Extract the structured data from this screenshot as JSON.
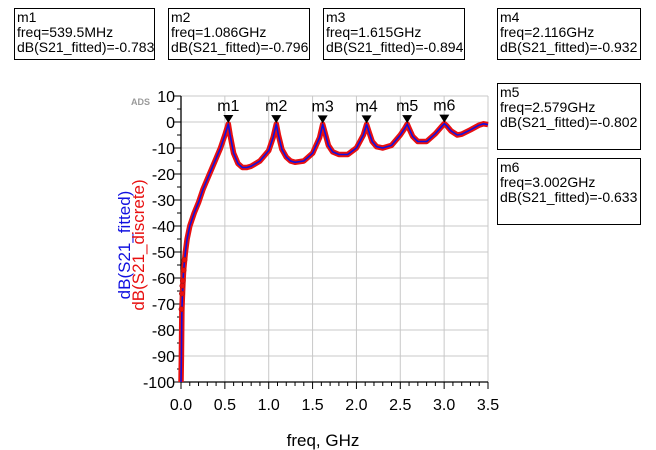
{
  "markers": [
    {
      "name": "m1",
      "freq": "freq=539.5MHz",
      "db": "dB(S21_fitted)=-0.783",
      "x": 0.5395,
      "y": -0.783
    },
    {
      "name": "m2",
      "freq": "freq=1.086GHz",
      "db": "dB(S21_fitted)=-0.796",
      "x": 1.086,
      "y": -0.796
    },
    {
      "name": "m3",
      "freq": "freq=1.615GHz",
      "db": "dB(S21_fitted)=-0.894",
      "x": 1.615,
      "y": -0.894
    },
    {
      "name": "m4",
      "freq": "freq=2.116GHz",
      "db": "dB(S21_fitted)=-0.932",
      "x": 2.116,
      "y": -0.932
    },
    {
      "name": "m5",
      "freq": "freq=2.579GHz",
      "db": "dB(S21_fitted)=-0.802",
      "x": 2.579,
      "y": -0.802
    },
    {
      "name": "m6",
      "freq": "freq=3.002GHz",
      "db": "dB(S21_fitted)=-0.633",
      "x": 3.002,
      "y": -0.633
    }
  ],
  "watermark": "ADS",
  "colors": {
    "fitted": "#1010e0",
    "discrete": "#e81010",
    "grid": "#c8c8c8"
  },
  "chart_data": {
    "type": "line",
    "xlabel": "freq, GHz",
    "ylabels": [
      "dB(S21_fitted)",
      "dB(S21_discrete)"
    ],
    "xlim": [
      0,
      3.5
    ],
    "ylim": [
      -100,
      10
    ],
    "xticks": [
      "0.0",
      "0.5",
      "1.0",
      "1.5",
      "2.0",
      "2.5",
      "3.0",
      "3.5"
    ],
    "yticks": [
      "10",
      "0",
      "-10",
      "-20",
      "-30",
      "-40",
      "-50",
      "-60",
      "-70",
      "-80",
      "-90",
      "-100"
    ],
    "grid": true,
    "series": [
      {
        "name": "dB(S21_fitted)",
        "style": "line",
        "x": [
          0.0,
          0.005,
          0.01,
          0.02,
          0.03,
          0.05,
          0.07,
          0.1,
          0.15,
          0.2,
          0.25,
          0.3,
          0.35,
          0.4,
          0.45,
          0.5,
          0.5395,
          0.56,
          0.6,
          0.65,
          0.7,
          0.75,
          0.8,
          0.9,
          1.0,
          1.05,
          1.086,
          1.11,
          1.15,
          1.2,
          1.25,
          1.3,
          1.4,
          1.5,
          1.58,
          1.615,
          1.64,
          1.68,
          1.73,
          1.8,
          1.9,
          2.0,
          2.08,
          2.116,
          2.14,
          2.18,
          2.23,
          2.3,
          2.4,
          2.5,
          2.55,
          2.579,
          2.6,
          2.64,
          2.7,
          2.8,
          2.9,
          2.97,
          3.002,
          3.03,
          3.08,
          3.15,
          3.2,
          3.3,
          3.4,
          3.45,
          3.5
        ],
        "y": [
          -100,
          -90,
          -72,
          -63,
          -57,
          -50,
          -45,
          -40,
          -35,
          -31,
          -26,
          -22,
          -18,
          -14,
          -10,
          -5,
          -0.783,
          -5,
          -12,
          -16,
          -17.5,
          -17.5,
          -17,
          -15,
          -11,
          -6,
          -0.796,
          -5,
          -10.5,
          -13.5,
          -15,
          -15.5,
          -15,
          -12,
          -6,
          -0.894,
          -4,
          -9,
          -11.5,
          -12.5,
          -12.5,
          -10,
          -5,
          -0.932,
          -3.5,
          -7.5,
          -9.5,
          -10,
          -9,
          -5,
          -2.5,
          -0.802,
          -2.5,
          -5.5,
          -7.5,
          -7.5,
          -4.5,
          -1.8,
          -0.633,
          -1.5,
          -3.5,
          -5,
          -4.7,
          -3,
          -1.2,
          -0.7,
          -1.0
        ]
      },
      {
        "name": "dB(S21_discrete)",
        "style": "markers",
        "x": [
          0.005,
          0.01,
          0.015,
          0.02,
          0.03,
          0.04
        ],
        "y": [
          -72,
          -66,
          -63,
          -61,
          -57,
          -53
        ]
      }
    ]
  }
}
